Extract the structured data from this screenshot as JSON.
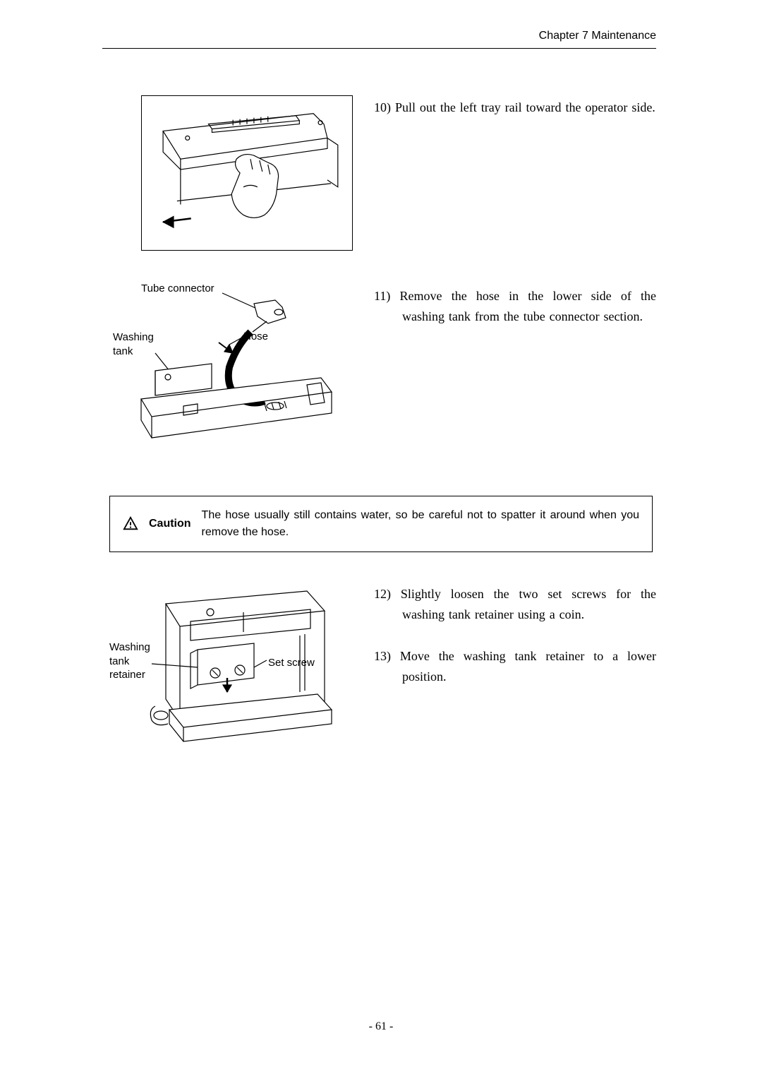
{
  "header": {
    "text": "Chapter 7  Maintenance"
  },
  "steps": {
    "s10": {
      "num": "10)",
      "text": "Pull out the left tray rail toward the operator side."
    },
    "s11": {
      "num": "11)",
      "text": "Remove the hose in the lower side of the washing tank from the tube connector section."
    },
    "s12": {
      "num": "12)",
      "text": "Slightly loosen the two set screws for the washing tank retainer using a coin."
    },
    "s13": {
      "num": "13)",
      "text": "Move the washing tank retainer to a lower position."
    }
  },
  "figure2_labels": {
    "tube_connector": "Tube connector",
    "washing_tank": "Washing\ntank",
    "hose": "Hose"
  },
  "figure3_labels": {
    "washing_tank_retainer": "Washing\ntank\nretainer",
    "set_screw": "Set screw"
  },
  "caution": {
    "label": "Caution",
    "text": "The hose usually still contains water, so be careful not to spatter it around when you remove the hose."
  },
  "page_number": "- 61 -"
}
